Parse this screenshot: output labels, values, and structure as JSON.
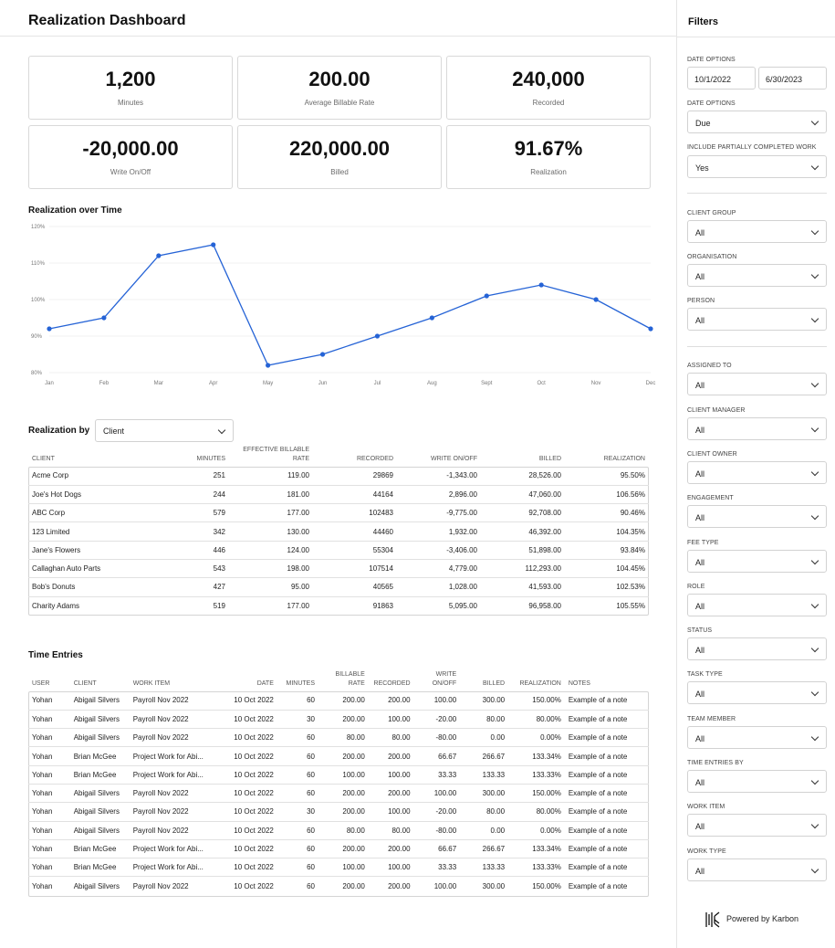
{
  "header": {
    "title": "Realization Dashboard"
  },
  "kpis": [
    {
      "value": "1,200",
      "label": "Minutes"
    },
    {
      "value": "200.00",
      "label": "Average Billable Rate"
    },
    {
      "value": "240,000",
      "label": "Recorded"
    },
    {
      "value": "-20,000.00",
      "label": "Write On/Off"
    },
    {
      "value": "220,000.00",
      "label": "Billed"
    },
    {
      "value": "91.67%",
      "label": "Realization"
    }
  ],
  "realization_over_time": {
    "title": "Realization over Time"
  },
  "chart_data": {
    "type": "line",
    "categories": [
      "Jan",
      "Feb",
      "Mar",
      "Apr",
      "May",
      "Jun",
      "Jul",
      "Aug",
      "Sept",
      "Oct",
      "Nov",
      "Dec"
    ],
    "values": [
      92,
      95,
      112,
      115,
      82,
      85,
      90,
      95,
      101,
      104,
      100,
      92
    ],
    "y_ticks": [
      "120%",
      "110%",
      "100%",
      "90%",
      "80%"
    ],
    "ylim": [
      80,
      120
    ],
    "grid": true,
    "color": "#2563d6"
  },
  "realization_by": {
    "title": "Realization by",
    "selected": "Client",
    "columns": [
      "Client",
      "Minutes",
      "Effective Billable Rate",
      "Recorded",
      "Write On/Off",
      "Billed",
      "Realization"
    ],
    "rows": [
      [
        "Acme Corp",
        "251",
        "119.00",
        "29869",
        "-1,343.00",
        "28,526.00",
        "95.50%"
      ],
      [
        "Joe's Hot Dogs",
        "244",
        "181.00",
        "44164",
        "2,896.00",
        "47,060.00",
        "106.56%"
      ],
      [
        "ABC Corp",
        "579",
        "177.00",
        "102483",
        "-9,775.00",
        "92,708.00",
        "90.46%"
      ],
      [
        "123 Limited",
        "342",
        "130.00",
        "44460",
        "1,932.00",
        "46,392.00",
        "104.35%"
      ],
      [
        "Jane's Flowers",
        "446",
        "124.00",
        "55304",
        "-3,406.00",
        "51,898.00",
        "93.84%"
      ],
      [
        "Callaghan Auto Parts",
        "543",
        "198.00",
        "107514",
        "4,779.00",
        "112,293.00",
        "104.45%"
      ],
      [
        "Bob's Donuts",
        "427",
        "95.00",
        "40565",
        "1,028.00",
        "41,593.00",
        "102.53%"
      ],
      [
        "Charity Adams",
        "519",
        "177.00",
        "91863",
        "5,095.00",
        "96,958.00",
        "105.55%"
      ]
    ]
  },
  "time_entries": {
    "title": "Time Entries",
    "columns": [
      "User",
      "Client",
      "Work Item",
      "Date",
      "Minutes",
      "Billable Rate",
      "Recorded",
      "Write On/Off",
      "Billed",
      "Realization",
      "Notes"
    ],
    "rows": [
      [
        "Yohan",
        "Abigail Silvers",
        "Payroll Nov 2022",
        "10 Oct 2022",
        "60",
        "200.00",
        "200.00",
        "100.00",
        "300.00",
        "150.00%",
        "Example of a note"
      ],
      [
        "Yohan",
        "Abigail Silvers",
        "Payroll Nov 2022",
        "10 Oct 2022",
        "30",
        "200.00",
        "100.00",
        "-20.00",
        "80.00",
        "80.00%",
        "Example of a note"
      ],
      [
        "Yohan",
        "Abigail Silvers",
        "Payroll Nov 2022",
        "10 Oct 2022",
        "60",
        "80.00",
        "80.00",
        "-80.00",
        "0.00",
        "0.00%",
        "Example of a note"
      ],
      [
        "Yohan",
        "Brian McGee",
        "Project Work for Abi...",
        "10 Oct 2022",
        "60",
        "200.00",
        "200.00",
        "66.67",
        "266.67",
        "133.34%",
        "Example of a note"
      ],
      [
        "Yohan",
        "Brian McGee",
        "Project Work for Abi...",
        "10 Oct 2022",
        "60",
        "100.00",
        "100.00",
        "33.33",
        "133.33",
        "133.33%",
        "Example of a note"
      ],
      [
        "Yohan",
        "Abigail Silvers",
        "Payroll Nov 2022",
        "10 Oct 2022",
        "60",
        "200.00",
        "200.00",
        "100.00",
        "300.00",
        "150.00%",
        "Example of a note"
      ],
      [
        "Yohan",
        "Abigail Silvers",
        "Payroll Nov 2022",
        "10 Oct 2022",
        "30",
        "200.00",
        "100.00",
        "-20.00",
        "80.00",
        "80.00%",
        "Example of a note"
      ],
      [
        "Yohan",
        "Abigail Silvers",
        "Payroll Nov 2022",
        "10 Oct 2022",
        "60",
        "80.00",
        "80.00",
        "-80.00",
        "0.00",
        "0.00%",
        "Example of a note"
      ],
      [
        "Yohan",
        "Brian McGee",
        "Project Work for Abi...",
        "10 Oct 2022",
        "60",
        "200.00",
        "200.00",
        "66.67",
        "266.67",
        "133.34%",
        "Example of a note"
      ],
      [
        "Yohan",
        "Brian McGee",
        "Project Work for Abi...",
        "10 Oct 2022",
        "60",
        "100.00",
        "100.00",
        "33.33",
        "133.33",
        "133.33%",
        "Example of a note"
      ],
      [
        "Yohan",
        "Abigail Silvers",
        "Payroll Nov 2022",
        "10 Oct 2022",
        "60",
        "200.00",
        "200.00",
        "100.00",
        "300.00",
        "150.00%",
        "Example of a note"
      ]
    ]
  },
  "filters": {
    "title": "Filters",
    "date_options_label": "Date Options",
    "date_from": "10/1/2022",
    "date_to": "6/30/2023",
    "date_options2_label": "Date Options",
    "date_options2_value": "Due",
    "partial_label": "Include Partially Completed Work",
    "partial_value": "Yes",
    "groups": [
      {
        "label": "Client Group",
        "value": "All"
      },
      {
        "label": "Organisation",
        "value": "All"
      },
      {
        "label": "Person",
        "value": "All"
      },
      {
        "label": "Assigned To",
        "value": "All"
      },
      {
        "label": "Client Manager",
        "value": "All"
      },
      {
        "label": "Client Owner",
        "value": "All"
      },
      {
        "label": "Engagement",
        "value": "All"
      },
      {
        "label": "Fee Type",
        "value": "All"
      },
      {
        "label": "Role",
        "value": "All"
      },
      {
        "label": "Status",
        "value": "All"
      },
      {
        "label": "Task Type",
        "value": "All"
      },
      {
        "label": "Team Member",
        "value": "All"
      },
      {
        "label": "Time Entries By",
        "value": "All"
      },
      {
        "label": "Work Item",
        "value": "All"
      },
      {
        "label": "Work Type",
        "value": "All"
      }
    ]
  },
  "footer": {
    "powered_by": "Powered by Karbon",
    "icon": "karbon-logo-icon"
  }
}
